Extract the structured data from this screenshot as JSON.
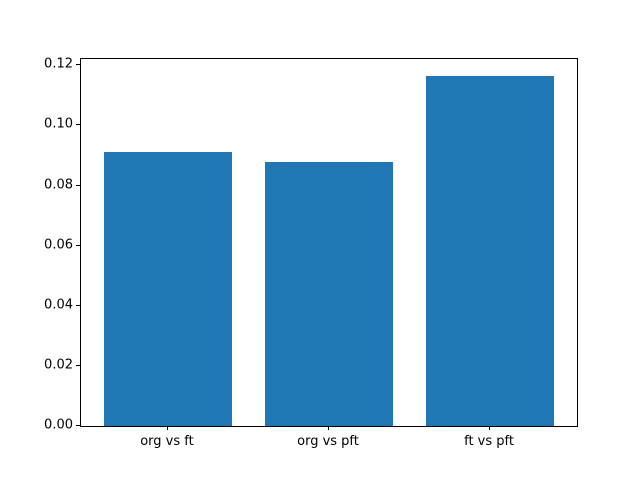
{
  "chart_data": {
    "type": "bar",
    "categories": [
      "org vs ft",
      "org vs pft",
      "ft vs pft"
    ],
    "values": [
      0.0913,
      0.0877,
      0.1163
    ],
    "title": "",
    "xlabel": "",
    "ylabel": "",
    "ylim": [
      0,
      0.1221
    ],
    "yticks": [
      0.0,
      0.02,
      0.04,
      0.06,
      0.08,
      0.1,
      0.12
    ],
    "ytick_format_decimals": 2,
    "grid": false,
    "legend": null,
    "bar_color": "#1f77b4"
  }
}
